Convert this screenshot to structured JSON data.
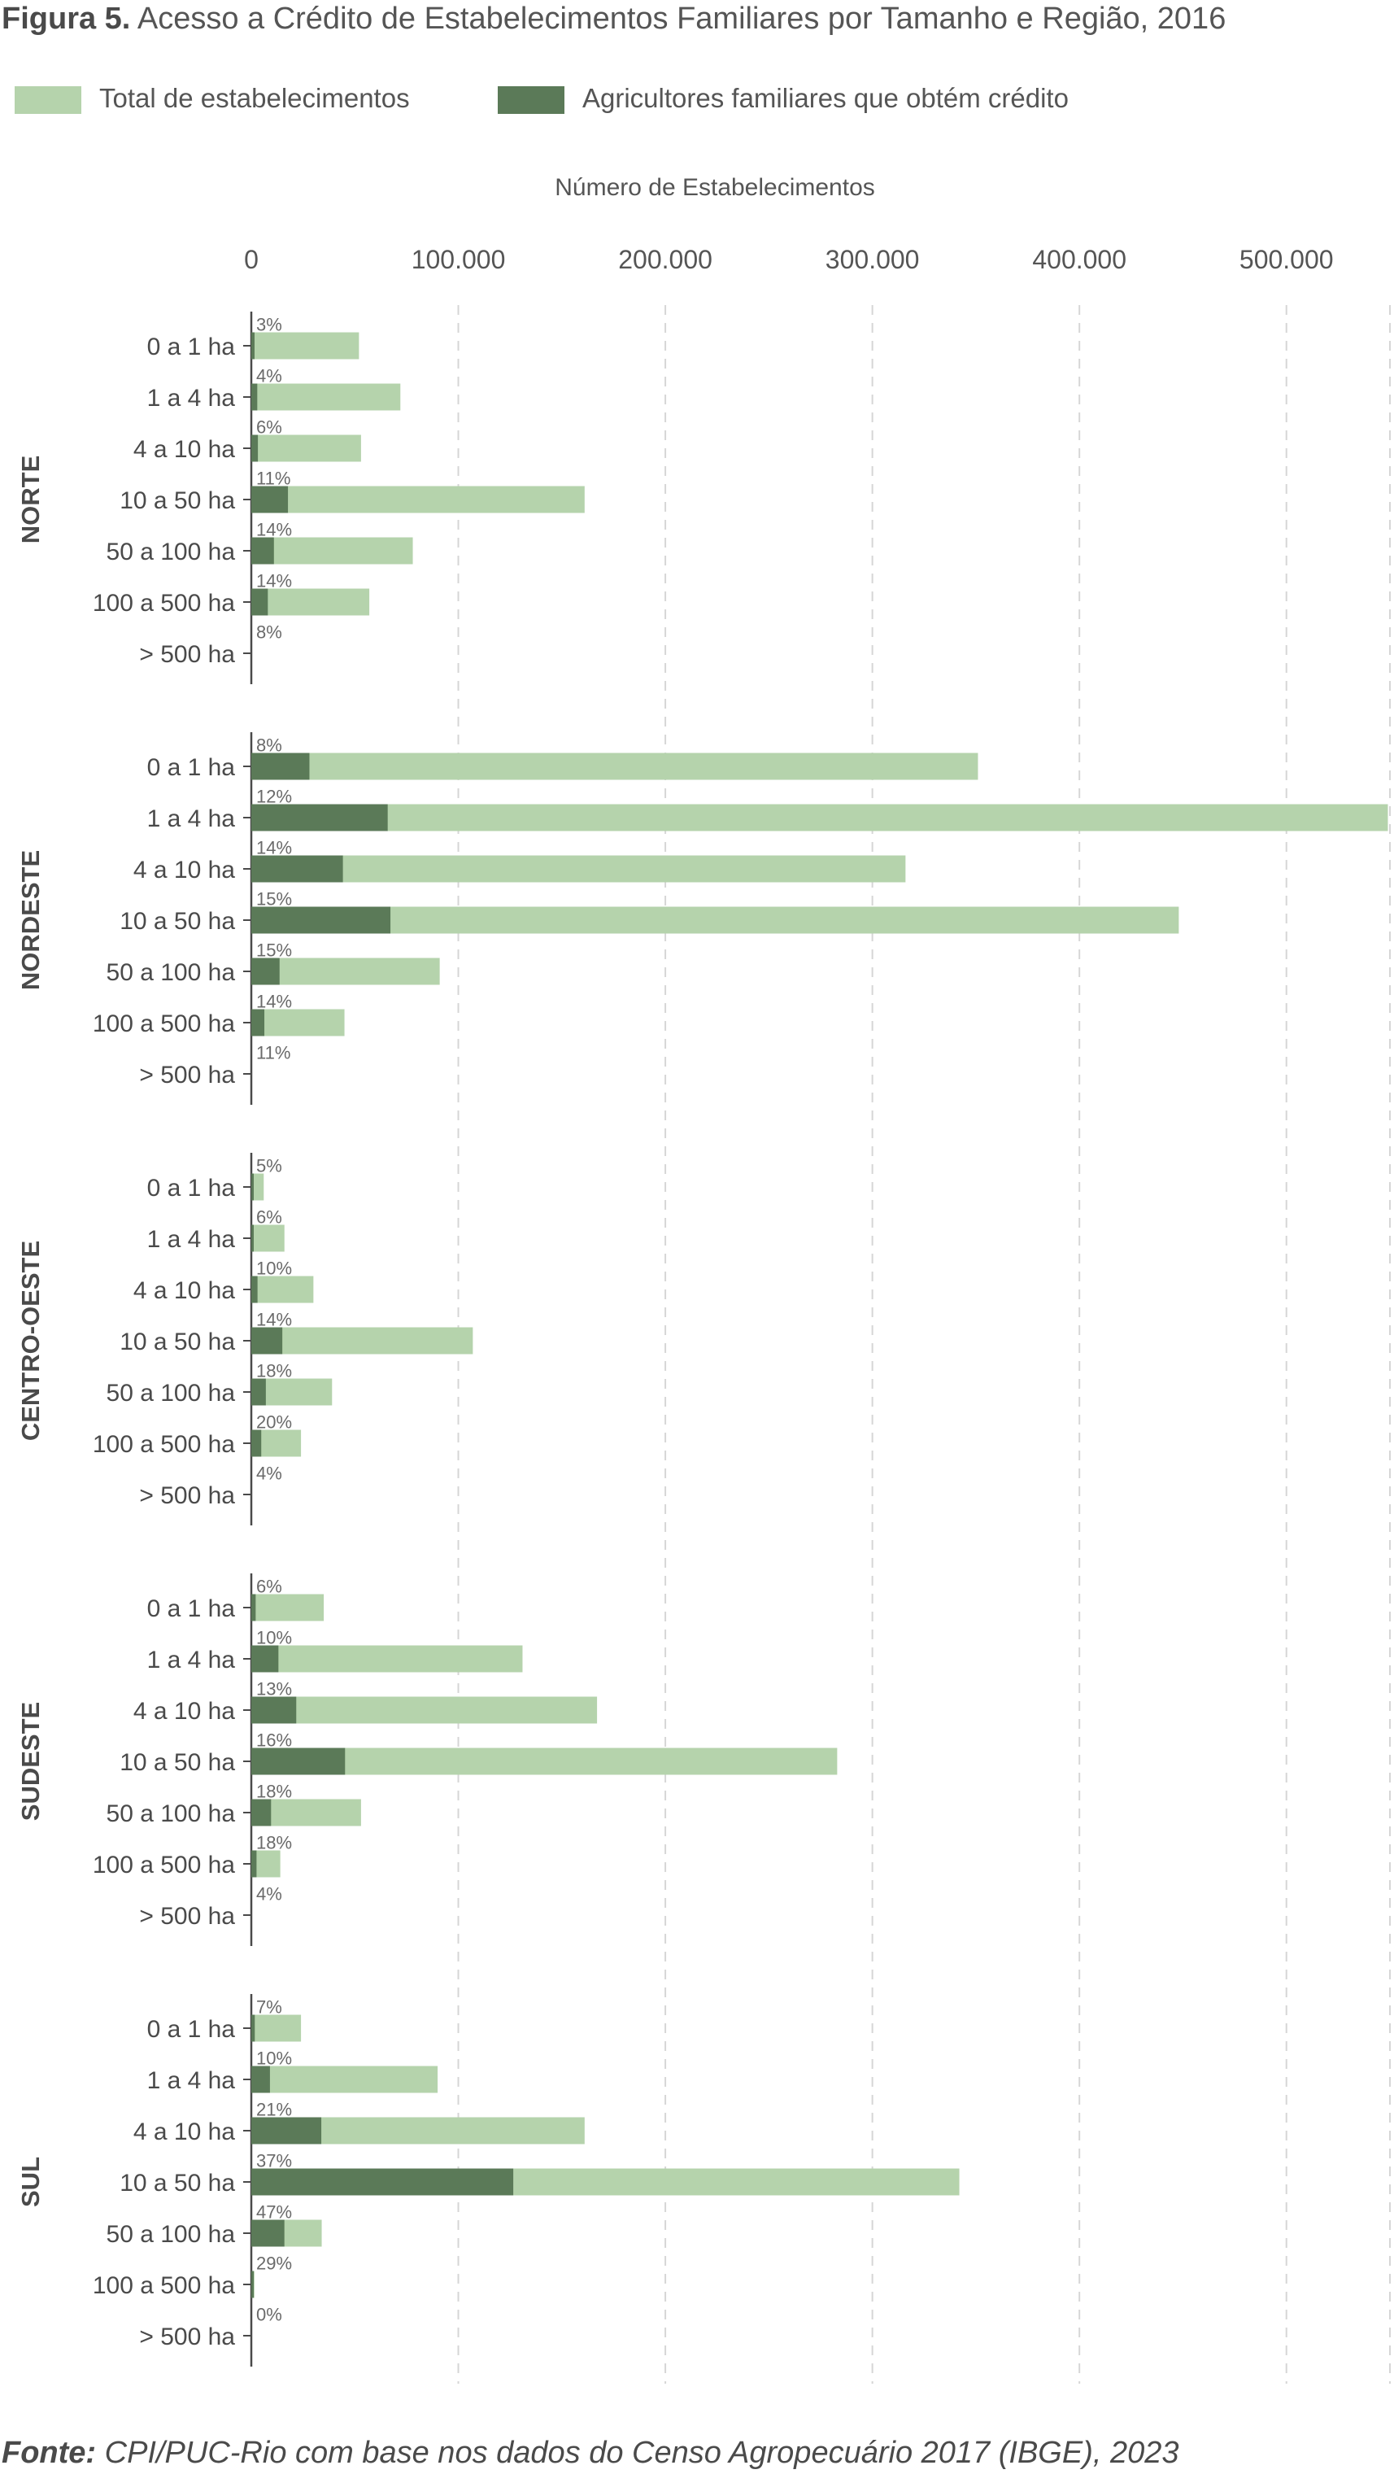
{
  "figure": {
    "label": "Figura 5.",
    "title": "Acesso a Crédito de Estabelecimentos Familiares por Tamanho e Região, 2016"
  },
  "legend": [
    {
      "name": "Total de estabelecimentos",
      "color": "#b5d3ac"
    },
    {
      "name": "Agricultores familiares que obtém crédito",
      "color": "#5b7a58"
    }
  ],
  "source": {
    "label": "Fonte:",
    "text": "CPI/PUC-Rio com base nos dados do Censo Agropecuário 2017 (IBGE), 2023"
  },
  "chart_data": {
    "type": "bar",
    "orientation": "horizontal",
    "stacking": "overlay",
    "title": "",
    "xlabel": "Número de Estabelecimentos",
    "xlim": [
      0,
      550000
    ],
    "xticks": [
      0,
      100000,
      200000,
      300000,
      400000,
      500000
    ],
    "xtick_labels": [
      "0",
      "100.000",
      "200.000",
      "300.000",
      "400.000",
      "500.000"
    ],
    "grid": "vertical dashed",
    "legend_position": "top-left",
    "categories": [
      "0 a 1 ha",
      "1 a 4 ha",
      "4 a 10 ha",
      "10 a 50 ha",
      "50 a 100 ha",
      "100 a 500 ha",
      "> 500 ha"
    ],
    "series": [
      {
        "name": "Total de estabelecimentos",
        "color": "#b5d3ac"
      },
      {
        "name": "Agricultores familiares que obtém crédito",
        "color": "#5b7a58"
      }
    ],
    "groups": [
      {
        "region": "NORTE",
        "total": [
          52000,
          72000,
          53000,
          161000,
          78000,
          57000,
          0
        ],
        "credit": [
          1560,
          2880,
          3180,
          17710,
          10920,
          7980,
          0
        ],
        "percent_labels": [
          "3%",
          "4%",
          "6%",
          "11%",
          "14%",
          "14%",
          "8%"
        ]
      },
      {
        "region": "NORDESTE",
        "total": [
          351000,
          549000,
          316000,
          448000,
          91000,
          45000,
          0
        ],
        "credit": [
          28080,
          65880,
          44240,
          67200,
          13650,
          6300,
          0
        ],
        "percent_labels": [
          "8%",
          "12%",
          "14%",
          "15%",
          "15%",
          "14%",
          "11%"
        ]
      },
      {
        "region": "CENTRO-OESTE",
        "total": [
          6000,
          16000,
          30000,
          107000,
          39000,
          24000,
          0
        ],
        "credit": [
          300,
          960,
          3000,
          14980,
          7020,
          4800,
          0
        ],
        "percent_labels": [
          "5%",
          "6%",
          "10%",
          "14%",
          "18%",
          "20%",
          "4%"
        ]
      },
      {
        "region": "SUDESTE",
        "total": [
          35000,
          131000,
          167000,
          283000,
          53000,
          14000,
          0
        ],
        "credit": [
          2100,
          13100,
          21710,
          45280,
          9540,
          2520,
          0
        ],
        "percent_labels": [
          "6%",
          "10%",
          "13%",
          "16%",
          "18%",
          "18%",
          "4%"
        ]
      },
      {
        "region": "SUL",
        "total": [
          24000,
          90000,
          161000,
          342000,
          34000,
          1500,
          0
        ],
        "credit": [
          1680,
          9000,
          33810,
          126540,
          15980,
          435,
          0
        ],
        "percent_labels": [
          "7%",
          "10%",
          "21%",
          "37%",
          "47%",
          "29%",
          "0%"
        ]
      }
    ]
  }
}
